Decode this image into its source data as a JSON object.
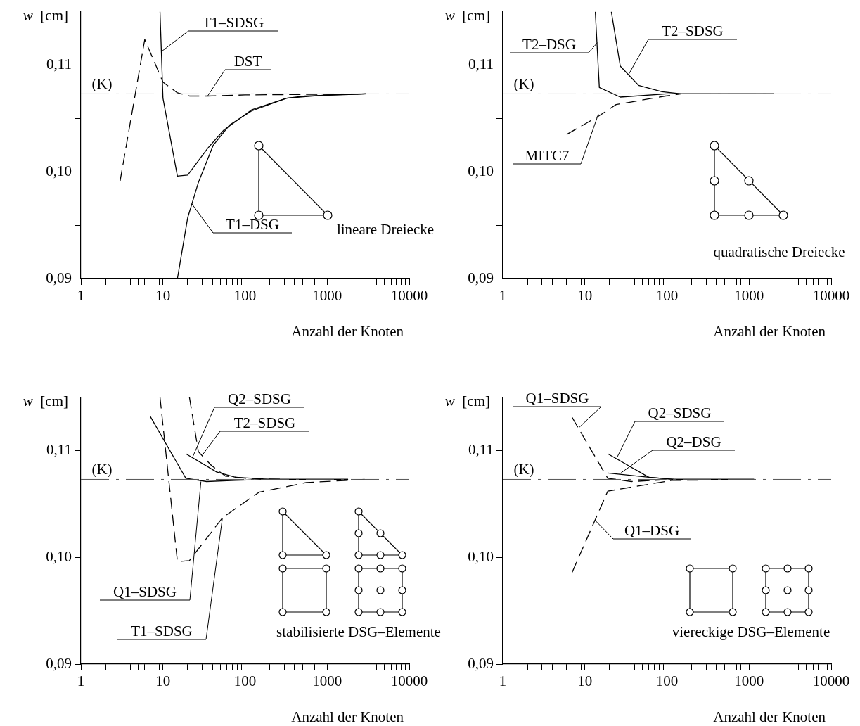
{
  "chart_data": [
    {
      "type": "line",
      "title": "lineare Dreiecke",
      "xlabel": "Anzahl der Knoten",
      "ylabel": "w [cm]",
      "log": "x",
      "grid": false,
      "legend": false,
      "marker": "none",
      "xlim": [
        1,
        10000
      ],
      "ylim": [
        0.09,
        0.115
      ],
      "xticks": [
        1,
        {
          "value": 2,
          "label": null
        },
        {
          "value": 3,
          "label": null
        },
        {
          "value": 4,
          "label": null
        },
        {
          "value": 5,
          "label": null
        },
        {
          "value": 6,
          "label": null
        },
        {
          "value": 7,
          "label": null
        },
        {
          "value": 8,
          "label": null
        },
        {
          "value": 9,
          "label": null
        },
        10,
        {
          "value": 20,
          "label": null
        },
        {
          "value": 30,
          "label": null
        },
        {
          "value": 40,
          "label": null
        },
        {
          "value": 50,
          "label": null
        },
        {
          "value": 60,
          "label": null
        },
        {
          "value": 70,
          "label": null
        },
        {
          "value": 80,
          "label": null
        },
        {
          "value": 90,
          "label": null
        },
        100,
        {
          "value": 200,
          "label": null
        },
        {
          "value": 300,
          "label": null
        },
        {
          "value": 400,
          "label": null
        },
        {
          "value": 500,
          "label": null
        },
        {
          "value": 600,
          "label": null
        },
        {
          "value": 700,
          "label": null
        },
        {
          "value": 800,
          "label": null
        },
        {
          "value": 900,
          "label": null
        },
        1000,
        {
          "value": 2000,
          "label": null
        },
        {
          "value": 3000,
          "label": null
        },
        {
          "value": 4000,
          "label": null
        },
        {
          "value": 5000,
          "label": null
        },
        {
          "value": 6000,
          "label": null
        },
        {
          "value": 7000,
          "label": null
        },
        {
          "value": 8000,
          "label": null
        },
        {
          "value": 9000,
          "label": null
        },
        10000
      ],
      "yticks": [
        {
          "value": 0.09,
          "label": "0,09"
        },
        {
          "value": 0.095,
          "label": null
        },
        {
          "value": 0.1,
          "label": "0,10"
        },
        {
          "value": 0.105,
          "label": null
        },
        {
          "value": 0.11,
          "label": "0,11"
        }
      ],
      "ref_lines": [
        {
          "axis": "y",
          "value": 0.1073,
          "label": "(K)",
          "color": "#555555",
          "line_style": "dashed"
        }
      ],
      "series": [
        {
          "color": "#000000",
          "line_style": "solid",
          "x": [
            9.2,
            10,
            15,
            20,
            35,
            55,
            120,
            320,
            540,
            3000
          ],
          "values": [
            0.115,
            0.1069,
            0.0996,
            0.0997,
            0.1022,
            0.1039,
            0.1058,
            0.1069,
            0.1071,
            0.1073
          ]
        },
        {
          "color": "#000000",
          "line_style": "dashed",
          "x": [
            3,
            6,
            10,
            15,
            21,
            35,
            100,
            3000
          ],
          "values": [
            0.0991,
            0.1124,
            0.1084,
            0.1074,
            0.1071,
            0.1071,
            0.1072,
            0.1073
          ]
        },
        {
          "color": "#000000",
          "line_style": "solid",
          "x": [
            15,
            20,
            27,
            41,
            65,
            120,
            320,
            1000,
            3000
          ],
          "values": [
            0.09,
            0.0957,
            0.099,
            0.1025,
            0.1044,
            0.1057,
            0.1069,
            0.1072,
            0.1073
          ]
        }
      ],
      "annotations": [
        {
          "text": "T1–SDSG",
          "x": 9.7,
          "y": 0.1113
        },
        {
          "text": "DST",
          "x": 35,
          "y": 0.1071
        },
        {
          "text": "T1–DSG",
          "x": 22.5,
          "y": 0.097
        }
      ]
    },
    {
      "type": "line",
      "title": "quadratische Dreiecke",
      "xlabel": "Anzahl der Knoten",
      "ylabel": "w [cm]",
      "log": "x",
      "grid": false,
      "legend": false,
      "marker": "none",
      "xlim": [
        1,
        10000
      ],
      "ylim": [
        0.09,
        0.115
      ],
      "xticks": [
        1,
        {
          "value": 2,
          "label": null
        },
        {
          "value": 3,
          "label": null
        },
        {
          "value": 4,
          "label": null
        },
        {
          "value": 5,
          "label": null
        },
        {
          "value": 6,
          "label": null
        },
        {
          "value": 7,
          "label": null
        },
        {
          "value": 8,
          "label": null
        },
        {
          "value": 9,
          "label": null
        },
        10,
        {
          "value": 20,
          "label": null
        },
        {
          "value": 30,
          "label": null
        },
        {
          "value": 40,
          "label": null
        },
        {
          "value": 50,
          "label": null
        },
        {
          "value": 60,
          "label": null
        },
        {
          "value": 70,
          "label": null
        },
        {
          "value": 80,
          "label": null
        },
        {
          "value": 90,
          "label": null
        },
        100,
        {
          "value": 200,
          "label": null
        },
        {
          "value": 300,
          "label": null
        },
        {
          "value": 400,
          "label": null
        },
        {
          "value": 500,
          "label": null
        },
        {
          "value": 600,
          "label": null
        },
        {
          "value": 700,
          "label": null
        },
        {
          "value": 800,
          "label": null
        },
        {
          "value": 900,
          "label": null
        },
        1000,
        {
          "value": 2000,
          "label": null
        },
        {
          "value": 3000,
          "label": null
        },
        {
          "value": 4000,
          "label": null
        },
        {
          "value": 5000,
          "label": null
        },
        {
          "value": 6000,
          "label": null
        },
        {
          "value": 7000,
          "label": null
        },
        {
          "value": 8000,
          "label": null
        },
        {
          "value": 9000,
          "label": null
        },
        10000
      ],
      "yticks": [
        {
          "value": 0.09,
          "label": "0,09"
        },
        {
          "value": 0.095,
          "label": null
        },
        {
          "value": 0.1,
          "label": "0,10"
        },
        {
          "value": 0.105,
          "label": null
        },
        {
          "value": 0.11,
          "label": "0,11"
        }
      ],
      "ref_lines": [
        {
          "axis": "y",
          "value": 0.1073,
          "label": "(K)",
          "color": "#555555",
          "line_style": "dashed"
        }
      ],
      "series": [
        {
          "color": "#000000",
          "line_style": "solid",
          "x": [
            13.4,
            15,
            27,
            100,
            150,
            2000
          ],
          "values": [
            0.115,
            0.1079,
            0.107,
            0.1073,
            0.1073,
            0.1073
          ]
        },
        {
          "color": "#000000",
          "line_style": "solid",
          "x": [
            21,
            27,
            45,
            87,
            150,
            2000
          ],
          "values": [
            0.115,
            0.1099,
            0.1081,
            0.1075,
            0.1073,
            0.1073
          ]
        },
        {
          "color": "#000000",
          "line_style": "dashed",
          "x": [
            6,
            14.6,
            24,
            96,
            150
          ],
          "values": [
            0.1035,
            0.1052,
            0.1063,
            0.1071,
            0.1073
          ]
        }
      ],
      "annotations": [
        {
          "text": "T2–DSG",
          "x": 14.2,
          "y": 0.1121
        },
        {
          "text": "T2–SDSG",
          "x": 34,
          "y": 0.1091
        },
        {
          "text": "MITC7",
          "x": 14.6,
          "y": 0.1054
        }
      ]
    },
    {
      "type": "line",
      "title": "stabilisierte DSG–Elemente",
      "xlabel": "Anzahl der Knoten",
      "ylabel": "w [cm]",
      "log": "x",
      "grid": false,
      "legend": false,
      "marker": "none",
      "xlim": [
        1,
        10000
      ],
      "ylim": [
        0.09,
        0.115
      ],
      "xticks": [
        1,
        {
          "value": 2,
          "label": null
        },
        {
          "value": 3,
          "label": null
        },
        {
          "value": 4,
          "label": null
        },
        {
          "value": 5,
          "label": null
        },
        {
          "value": 6,
          "label": null
        },
        {
          "value": 7,
          "label": null
        },
        {
          "value": 8,
          "label": null
        },
        {
          "value": 9,
          "label": null
        },
        10,
        {
          "value": 20,
          "label": null
        },
        {
          "value": 30,
          "label": null
        },
        {
          "value": 40,
          "label": null
        },
        {
          "value": 50,
          "label": null
        },
        {
          "value": 60,
          "label": null
        },
        {
          "value": 70,
          "label": null
        },
        {
          "value": 80,
          "label": null
        },
        {
          "value": 90,
          "label": null
        },
        100,
        {
          "value": 200,
          "label": null
        },
        {
          "value": 300,
          "label": null
        },
        {
          "value": 400,
          "label": null
        },
        {
          "value": 500,
          "label": null
        },
        {
          "value": 600,
          "label": null
        },
        {
          "value": 700,
          "label": null
        },
        {
          "value": 800,
          "label": null
        },
        {
          "value": 900,
          "label": null
        },
        1000,
        {
          "value": 2000,
          "label": null
        },
        {
          "value": 3000,
          "label": null
        },
        {
          "value": 4000,
          "label": null
        },
        {
          "value": 5000,
          "label": null
        },
        {
          "value": 6000,
          "label": null
        },
        {
          "value": 7000,
          "label": null
        },
        {
          "value": 8000,
          "label": null
        },
        {
          "value": 9000,
          "label": null
        },
        10000
      ],
      "yticks": [
        {
          "value": 0.09,
          "label": "0,09"
        },
        {
          "value": 0.095,
          "label": null
        },
        {
          "value": 0.1,
          "label": "0,10"
        },
        {
          "value": 0.105,
          "label": null
        },
        {
          "value": 0.11,
          "label": "0,11"
        }
      ],
      "ref_lines": [
        {
          "axis": "y",
          "value": 0.1073,
          "label": "(K)",
          "color": "#555555",
          "line_style": "dashed"
        }
      ],
      "series": [
        {
          "color": "#000000",
          "line_style": "solid",
          "x": [
            19,
            45,
            76,
            205,
            1800
          ],
          "values": [
            0.1097,
            0.108,
            0.1075,
            0.1073,
            0.1073
          ]
        },
        {
          "color": "#000000",
          "line_style": "dashed",
          "x": [
            21,
            27,
            39,
            58,
            106,
            300
          ],
          "values": [
            0.115,
            0.1099,
            0.1086,
            0.1076,
            0.1074,
            0.1073
          ]
        },
        {
          "color": "#000000",
          "line_style": "solid",
          "x": [
            7,
            19,
            34,
            76,
            200,
            1800
          ],
          "values": [
            0.1132,
            0.1074,
            0.1071,
            0.1072,
            0.1073,
            0.1073
          ]
        },
        {
          "color": "#000000",
          "line_style": "dashed",
          "x": [
            9.2,
            15,
            21,
            53,
            148,
            555,
            2900
          ],
          "values": [
            0.115,
            0.0996,
            0.0997,
            0.1037,
            0.1061,
            0.107,
            0.1073
          ]
        }
      ],
      "annotations": [
        {
          "text": "Q2–SDSG",
          "x": 23,
          "y": 0.1094
        },
        {
          "text": "T2–SDSG",
          "x": 31,
          "y": 0.1097
        },
        {
          "text": "Q1–SDSG",
          "x": 29,
          "y": 0.1071
        },
        {
          "text": "T1–SDSG",
          "x": 53,
          "y": 0.1037
        }
      ]
    },
    {
      "type": "line",
      "title": "viereckige DSG–Elemente",
      "xlabel": "Anzahl der Knoten",
      "ylabel": "w [cm]",
      "log": "x",
      "grid": false,
      "legend": false,
      "marker": "none",
      "xlim": [
        1,
        10000
      ],
      "ylim": [
        0.09,
        0.115
      ],
      "xticks": [
        1,
        {
          "value": 2,
          "label": null
        },
        {
          "value": 3,
          "label": null
        },
        {
          "value": 4,
          "label": null
        },
        {
          "value": 5,
          "label": null
        },
        {
          "value": 6,
          "label": null
        },
        {
          "value": 7,
          "label": null
        },
        {
          "value": 8,
          "label": null
        },
        {
          "value": 9,
          "label": null
        },
        10,
        {
          "value": 20,
          "label": null
        },
        {
          "value": 30,
          "label": null
        },
        {
          "value": 40,
          "label": null
        },
        {
          "value": 50,
          "label": null
        },
        {
          "value": 60,
          "label": null
        },
        {
          "value": 70,
          "label": null
        },
        {
          "value": 80,
          "label": null
        },
        {
          "value": 90,
          "label": null
        },
        100,
        {
          "value": 200,
          "label": null
        },
        {
          "value": 300,
          "label": null
        },
        {
          "value": 400,
          "label": null
        },
        {
          "value": 500,
          "label": null
        },
        {
          "value": 600,
          "label": null
        },
        {
          "value": 700,
          "label": null
        },
        {
          "value": 800,
          "label": null
        },
        {
          "value": 900,
          "label": null
        },
        1000,
        {
          "value": 2000,
          "label": null
        },
        {
          "value": 3000,
          "label": null
        },
        {
          "value": 4000,
          "label": null
        },
        {
          "value": 5000,
          "label": null
        },
        {
          "value": 6000,
          "label": null
        },
        {
          "value": 7000,
          "label": null
        },
        {
          "value": 8000,
          "label": null
        },
        {
          "value": 9000,
          "label": null
        },
        10000
      ],
      "yticks": [
        {
          "value": 0.09,
          "label": "0,09"
        },
        {
          "value": 0.095,
          "label": null
        },
        {
          "value": 0.1,
          "label": "0,10"
        },
        {
          "value": 0.105,
          "label": null
        },
        {
          "value": 0.11,
          "label": "0,11"
        }
      ],
      "ref_lines": [
        {
          "axis": "y",
          "value": 0.1073,
          "label": "(K)",
          "color": "#555555",
          "line_style": "dashed"
        }
      ],
      "series": [
        {
          "color": "#000000",
          "line_style": "dashed",
          "x": [
            7,
            19,
            37,
            120
          ],
          "values": [
            0.1131,
            0.1074,
            0.1071,
            0.1073
          ]
        },
        {
          "color": "#000000",
          "line_style": "solid",
          "x": [
            19,
            60,
            121,
            1150
          ],
          "values": [
            0.1097,
            0.1075,
            0.1073,
            0.1073
          ]
        },
        {
          "color": "#000000",
          "line_style": "solid",
          "x": [
            19,
            60,
            121,
            1150
          ],
          "values": [
            0.1079,
            0.1075,
            0.1073,
            0.1073
          ]
        },
        {
          "color": "#000000",
          "line_style": "dashed",
          "x": [
            7,
            19,
            113,
            1150
          ],
          "values": [
            0.0986,
            0.1062,
            0.1072,
            0.1073
          ]
        }
      ],
      "annotations": [
        {
          "text": "Q1–SDSG",
          "x": 8.6,
          "y": 0.1122
        },
        {
          "text": "Q2–SDSG",
          "x": 24.8,
          "y": 0.1094
        },
        {
          "text": "Q2–DSG",
          "x": 26.3,
          "y": 0.1078
        },
        {
          "text": "Q1–DSG",
          "x": 13.2,
          "y": 0.1035
        }
      ]
    }
  ]
}
